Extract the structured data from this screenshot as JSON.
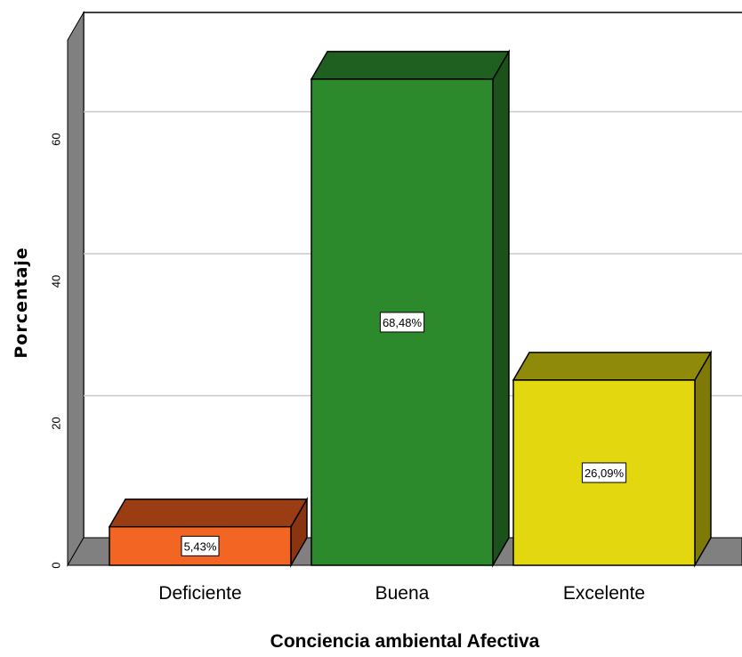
{
  "chart_data": {
    "type": "bar",
    "style": "3d",
    "xlabel": "Conciencia ambiental Afectiva",
    "ylabel": "Porcentaje",
    "categories": [
      "Deficiente",
      "Buena",
      "Excelente"
    ],
    "values": [
      5.43,
      68.48,
      26.09
    ],
    "data_labels": [
      "5,43%",
      "68,48%",
      "26,09%"
    ],
    "ylim": [
      0,
      75
    ],
    "yticks": [
      0,
      20,
      40,
      60
    ],
    "grid": true,
    "colors": {
      "Deficiente": {
        "front": "#f26522",
        "top": "#9b3d13",
        "side": "#8a3510"
      },
      "Buena": {
        "front": "#2c8a2c",
        "top": "#1f5f1f",
        "side": "#1a521a"
      },
      "Excelente": {
        "front": "#e3d810",
        "top": "#8f8a0a",
        "side": "#7f7a08"
      }
    },
    "wall_color": "#808080",
    "gridline_color": "#c8c8c8"
  }
}
